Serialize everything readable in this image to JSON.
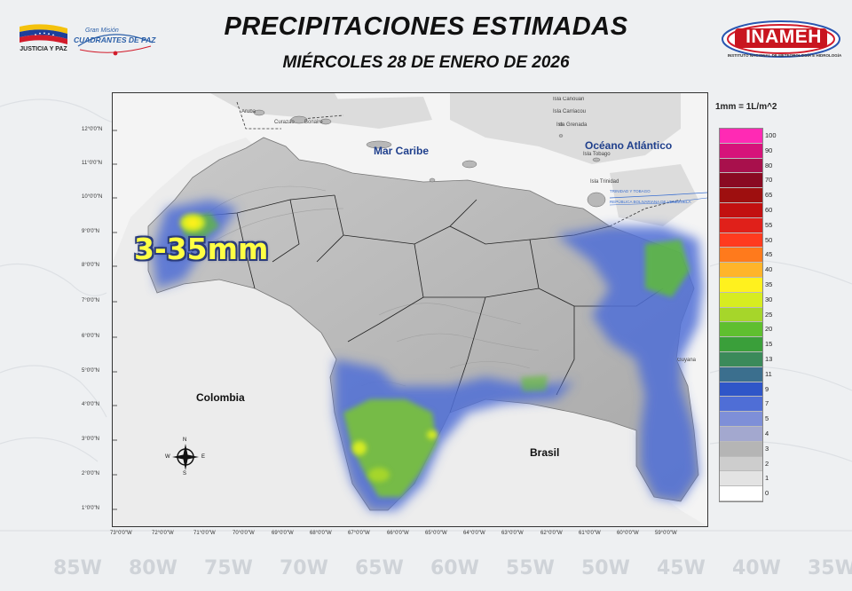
{
  "header": {
    "title": "PRECIPITACIONES ESTIMADAS",
    "subtitle": "MIÉRCOLES 28 DE ENERO DE 2026",
    "logos": {
      "gov_text": "JUSTICIA Y PAZ",
      "mission_small": "Gran Misión",
      "mission_big": "CUADRANTES DE PAZ",
      "inameh": "INAMEH",
      "inameh_sub": "INSTITUTO NACIONAL DE METEOROLOGÍA E HIDROLOGÍA"
    }
  },
  "map": {
    "labels": {
      "sea": "Mar Caribe",
      "ocean": "Océano Atlántico",
      "colombia": "Colombia",
      "brasil": "Brasil",
      "guyana": "Guyana",
      "aruba": "Aruba",
      "curazao": "Curazao",
      "bonaire": "Bonaire",
      "canouan": "Isla Canouan",
      "carriacou": "Isla Carriacou",
      "grenada": "Isla Grenada",
      "tobago": "Isla Tobago",
      "trinidad": "Isla Trinidad",
      "highlight": "3-35mm",
      "treaty1": "TRINIDAD Y TOBAGO",
      "treaty2": "REPÚBLICA BOLIVARIANA DE VENEZUELA",
      "compass_n": "N",
      "compass_s": "S",
      "compass_e": "E",
      "compass_w": "W"
    },
    "lat_labels": [
      "12°0'0\"N",
      "11°0'0\"N",
      "10°0'0\"N",
      "9°0'0\"N",
      "8°0'0\"N",
      "7°0'0\"N",
      "6°0'0\"N",
      "5°0'0\"N",
      "4°0'0\"N",
      "3°0'0\"N",
      "2°0'0\"N",
      "1°0'0\"N"
    ],
    "lon_labels": [
      "73°0'0\"W",
      "72°0'0\"W",
      "71°0'0\"W",
      "70°0'0\"W",
      "69°0'0\"W",
      "68°0'0\"W",
      "67°0'0\"W",
      "66°0'0\"W",
      "65°0'0\"W",
      "64°0'0\"W",
      "63°0'0\"W",
      "62°0'0\"W",
      "61°0'0\"W",
      "60°0'0\"W",
      "59°0'0\"W"
    ],
    "background_lon_labels": [
      "85W",
      "80W",
      "75W",
      "70W",
      "65W",
      "60W",
      "55W",
      "50W",
      "45W",
      "40W",
      "35W"
    ]
  },
  "legend": {
    "title": "1mm = 1L/m^2",
    "levels": [
      "100",
      "90",
      "80",
      "70",
      "65",
      "60",
      "55",
      "50",
      "45",
      "40",
      "35",
      "30",
      "25",
      "20",
      "15",
      "13",
      "11",
      "9",
      "7",
      "5",
      "4",
      "3",
      "2",
      "1",
      "0"
    ],
    "colors": [
      "#ff2ab4",
      "#d6137a",
      "#a8104c",
      "#8a0a22",
      "#9e0f0f",
      "#c21010",
      "#e0201a",
      "#ff3b1f",
      "#ff7a1c",
      "#ffb42a",
      "#fff11e",
      "#d7ec21",
      "#a6d62a",
      "#5fbf2f",
      "#3a9f3a",
      "#3b8a5a",
      "#3b6f8e",
      "#2f56c8",
      "#4f6ed6",
      "#7e8fd8",
      "#a3a8cf",
      "#b5b5b5",
      "#cdcdcd",
      "#e3e3e3",
      "#ffffff"
    ]
  }
}
